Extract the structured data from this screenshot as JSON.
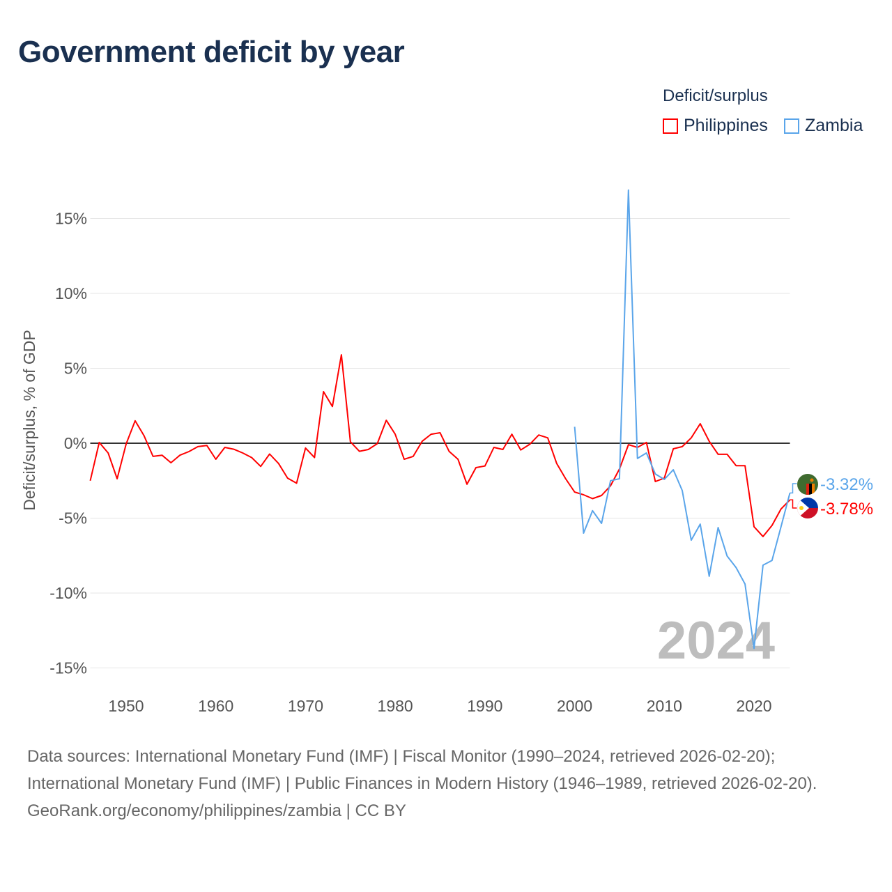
{
  "title": "Government deficit by year",
  "legend": {
    "title": "Deficit/surplus",
    "items": [
      {
        "label": "Philippines",
        "color": "#ff0000"
      },
      {
        "label": "Zambia",
        "color": "#5aa5ea"
      }
    ]
  },
  "year_watermark": "2024",
  "footer": {
    "sources": "Data sources: International Monetary Fund (IMF) | Fiscal Monitor (1990–2024, retrieved 2026-02-20); International Monetary Fund (IMF) | Public Finances in Modern History (1946–1989, retrieved 2026-02-20).",
    "credit": "GeoRank.org/economy/philippines/zambia | CC BY"
  },
  "chart_data": {
    "type": "line",
    "title": "Government deficit by year",
    "xlabel": "",
    "ylabel": "Deficit/surplus, % of GDP",
    "xlim": [
      1946,
      2024
    ],
    "ylim": [
      -15,
      15
    ],
    "x_ticks": [
      "1950",
      "1960",
      "1970",
      "1980",
      "1990",
      "2000",
      "2010",
      "2020"
    ],
    "y_ticks": [
      "15%",
      "10%",
      "5%",
      "0%",
      "-5%",
      "-10%",
      "-15%"
    ],
    "grid": true,
    "legend_position": "top-right",
    "series": [
      {
        "name": "Philippines",
        "color": "#ff0000",
        "end_label": "-3.78%",
        "start_year": 1946,
        "values": [
          -2.5,
          0.05,
          -0.65,
          -2.37,
          -0.05,
          1.5,
          0.5,
          -0.88,
          -0.8,
          -1.3,
          -0.8,
          -0.56,
          -0.23,
          -0.15,
          -1.07,
          -0.28,
          -0.4,
          -0.65,
          -0.96,
          -1.55,
          -0.72,
          -1.36,
          -2.33,
          -2.67,
          -0.32,
          -0.96,
          3.44,
          2.45,
          5.9,
          0.1,
          -0.54,
          -0.42,
          -0.03,
          1.53,
          0.6,
          -1.07,
          -0.88,
          0.13,
          0.6,
          0.7,
          -0.54,
          -1.07,
          -2.74,
          -1.63,
          -1.52,
          -0.28,
          -0.42,
          0.6,
          -0.45,
          -0.07,
          0.55,
          0.36,
          -1.35,
          -2.37,
          -3.26,
          -3.44,
          -3.7,
          -3.49,
          -2.84,
          -1.72,
          -0.1,
          -0.28,
          0.05,
          -2.56,
          -2.33,
          -0.37,
          -0.23,
          0.36,
          1.3,
          0.13,
          -0.74,
          -0.74,
          -1.5,
          -1.5,
          -5.57,
          -6.23,
          -5.49,
          -4.4,
          -3.78
        ]
      },
      {
        "name": "Zambia",
        "color": "#5aa5ea",
        "end_label": "-3.32%",
        "start_year": 2000,
        "values": [
          1.1,
          -6.0,
          -4.5,
          -5.35,
          -2.5,
          -2.37,
          16.9,
          -1.02,
          -0.65,
          -2.05,
          -2.42,
          -1.77,
          -3.16,
          -6.47,
          -5.4,
          -8.88,
          -5.63,
          -7.53,
          -8.3,
          -9.4,
          -13.7,
          -8.14,
          -7.83,
          -5.6,
          -3.32
        ]
      }
    ]
  }
}
